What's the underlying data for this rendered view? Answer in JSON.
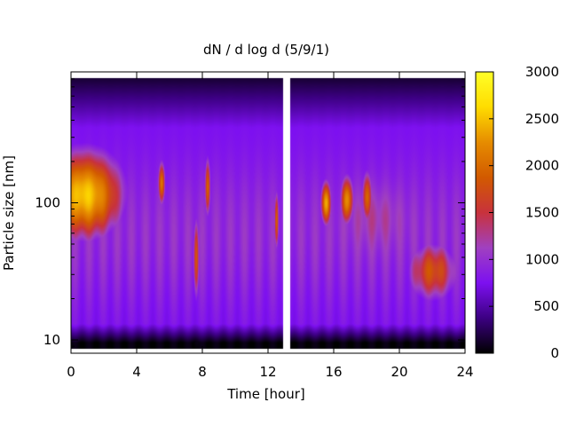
{
  "chart_data": {
    "type": "heatmap",
    "title": "dN / d log d (5/9/1)",
    "xlabel": "Time [hour]",
    "ylabel": "Particle size [nm]",
    "xlim": [
      0,
      24
    ],
    "ylim": [
      8,
      900
    ],
    "y_scale": "log",
    "x_ticks": [
      0,
      4,
      8,
      12,
      16,
      20,
      24
    ],
    "y_ticks": [
      10,
      100
    ],
    "colorbar": {
      "range": [
        0,
        3000
      ],
      "ticks": [
        0,
        500,
        1000,
        1500,
        2000,
        2500,
        3000
      ],
      "colormap": [
        "#000000",
        "#3c0082",
        "#7d10f0",
        "#a040c0",
        "#c8323c",
        "#d25a00",
        "#e68c00",
        "#ffdc00",
        "#ffff28"
      ]
    },
    "data_gap_hours": [
      12.9,
      13.3
    ],
    "features": [
      {
        "time_h": 0.8,
        "size_nm": 115,
        "value": 2550
      },
      {
        "time_h": 5.5,
        "size_nm": 140,
        "value": 2050
      },
      {
        "time_h": 7.6,
        "size_nm": 40,
        "value": 1950
      },
      {
        "time_h": 8.3,
        "size_nm": 130,
        "value": 2000
      },
      {
        "time_h": 12.5,
        "size_nm": 75,
        "value": 1950
      },
      {
        "time_h": 15.5,
        "size_nm": 100,
        "value": 2400
      },
      {
        "time_h": 16.8,
        "size_nm": 105,
        "value": 2250
      },
      {
        "time_h": 18.0,
        "size_nm": 110,
        "value": 2000
      },
      {
        "time_h": 22.0,
        "size_nm": 32,
        "value": 1800
      }
    ]
  }
}
